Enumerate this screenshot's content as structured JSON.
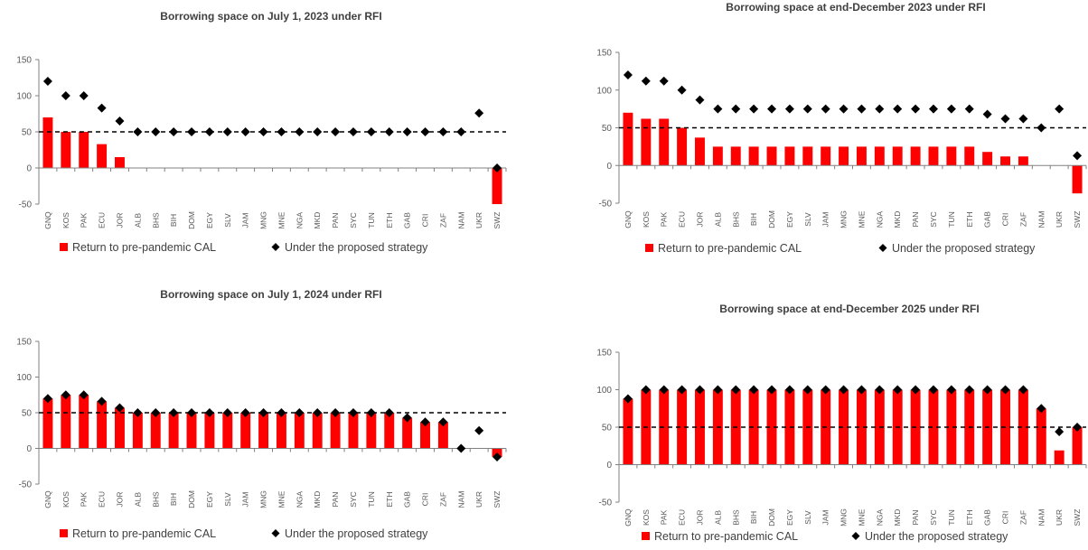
{
  "legend": {
    "bar_label": "Return to pre-pandemic CAL",
    "marker_label": "Under the proposed strategy"
  },
  "colors": {
    "bar": "#ff0000",
    "marker": "#000000",
    "reference_line": "#000000",
    "axis": "#808080"
  },
  "chart_data": [
    {
      "type": "bar",
      "title": "Borrowing space on July 1, 2023 under RFI",
      "categories": [
        "GNQ",
        "KOS",
        "PAK",
        "ECU",
        "JOR",
        "ALB",
        "BHS",
        "BIH",
        "DOM",
        "EGY",
        "SLV",
        "JAM",
        "MNG",
        "MNE",
        "NGA",
        "MKD",
        "PAN",
        "SYC",
        "TUN",
        "ETH",
        "GAB",
        "CRI",
        "ZAF",
        "NAM",
        "UKR",
        "SWZ"
      ],
      "series": [
        {
          "name": "Return to pre-pandemic CAL",
          "kind": "bar",
          "values": [
            70,
            50,
            50,
            33,
            15,
            0,
            0,
            0,
            0,
            0,
            0,
            0,
            0,
            0,
            0,
            0,
            0,
            0,
            0,
            0,
            0,
            0,
            0,
            0,
            0,
            -50
          ]
        },
        {
          "name": "Under the proposed strategy",
          "kind": "marker",
          "values": [
            120,
            100,
            100,
            83,
            65,
            50,
            50,
            50,
            50,
            50,
            50,
            50,
            50,
            50,
            50,
            50,
            50,
            50,
            50,
            50,
            50,
            50,
            50,
            50,
            76,
            0
          ]
        }
      ],
      "reference_line": 50,
      "ylim": [
        -50,
        150
      ],
      "yticks": [
        -50,
        0,
        50,
        100,
        150
      ],
      "legend_position": "bottom"
    },
    {
      "type": "bar",
      "title": "Borrowing space at end-December 2023 under RFI",
      "categories": [
        "GNQ",
        "KOS",
        "PAK",
        "ECU",
        "JOR",
        "ALB",
        "BHS",
        "BIH",
        "DOM",
        "EGY",
        "SLV",
        "JAM",
        "MNG",
        "MNE",
        "NGA",
        "MKD",
        "PAN",
        "SYC",
        "TUN",
        "ETH",
        "GAB",
        "CRI",
        "ZAF",
        "NAM",
        "UKR",
        "SWZ"
      ],
      "series": [
        {
          "name": "Return to pre-pandemic CAL",
          "kind": "bar",
          "values": [
            70,
            62,
            62,
            50,
            37,
            25,
            25,
            25,
            25,
            25,
            25,
            25,
            25,
            25,
            25,
            25,
            25,
            25,
            25,
            25,
            18,
            12,
            12,
            0,
            0,
            -37
          ]
        },
        {
          "name": "Under the proposed strategy",
          "kind": "marker",
          "values": [
            120,
            112,
            112,
            100,
            87,
            75,
            75,
            75,
            75,
            75,
            75,
            75,
            75,
            75,
            75,
            75,
            75,
            75,
            75,
            75,
            68,
            62,
            62,
            50,
            75,
            13
          ]
        }
      ],
      "reference_line": 50,
      "ylim": [
        -50,
        150
      ],
      "yticks": [
        -50,
        0,
        50,
        100,
        150
      ],
      "legend_position": "bottom"
    },
    {
      "type": "bar",
      "title": "Borrowing space on July 1, 2024 under RFI",
      "categories": [
        "GNQ",
        "KOS",
        "PAK",
        "ECU",
        "JOR",
        "ALB",
        "BHS",
        "BIH",
        "DOM",
        "EGY",
        "SLV",
        "JAM",
        "MNG",
        "MNE",
        "NGA",
        "MKD",
        "PAN",
        "SYC",
        "TUN",
        "ETH",
        "GAB",
        "CRI",
        "ZAF",
        "NAM",
        "UKR",
        "SWZ"
      ],
      "series": [
        {
          "name": "Return to pre-pandemic CAL",
          "kind": "bar",
          "values": [
            70,
            75,
            75,
            66,
            57,
            50,
            50,
            50,
            50,
            50,
            50,
            50,
            50,
            50,
            50,
            50,
            50,
            50,
            50,
            50,
            43,
            37,
            37,
            0,
            0,
            -12
          ]
        },
        {
          "name": "Under the proposed strategy",
          "kind": "marker",
          "values": [
            70,
            75,
            75,
            66,
            57,
            50,
            50,
            50,
            50,
            50,
            50,
            50,
            50,
            50,
            50,
            50,
            50,
            50,
            50,
            50,
            43,
            37,
            37,
            0,
            25,
            -12
          ]
        }
      ],
      "reference_line": 50,
      "ylim": [
        -50,
        150
      ],
      "yticks": [
        -50,
        0,
        50,
        100,
        150
      ],
      "legend_position": "bottom"
    },
    {
      "type": "bar",
      "title": "Borrowing space at end-December 2025 under RFI",
      "categories": [
        "GNQ",
        "KOS",
        "PAK",
        "ECU",
        "JOR",
        "ALB",
        "BHS",
        "BIH",
        "DOM",
        "EGY",
        "SLV",
        "JAM",
        "MNG",
        "MNE",
        "NGA",
        "MKD",
        "PAN",
        "SYC",
        "TUN",
        "ETH",
        "GAB",
        "CRI",
        "ZAF",
        "NAM",
        "UKR",
        "SWZ"
      ],
      "series": [
        {
          "name": "Return to pre-pandemic CAL",
          "kind": "bar",
          "values": [
            88,
            100,
            100,
            100,
            100,
            100,
            100,
            100,
            100,
            100,
            100,
            100,
            100,
            100,
            100,
            100,
            100,
            100,
            100,
            100,
            100,
            100,
            100,
            75,
            19,
            50
          ]
        },
        {
          "name": "Under the proposed strategy",
          "kind": "marker",
          "values": [
            88,
            100,
            100,
            100,
            100,
            100,
            100,
            100,
            100,
            100,
            100,
            100,
            100,
            100,
            100,
            100,
            100,
            100,
            100,
            100,
            100,
            100,
            100,
            75,
            44,
            50
          ]
        }
      ],
      "reference_line": 50,
      "ylim": [
        -50,
        150
      ],
      "yticks": [
        -50,
        0,
        50,
        100,
        150
      ],
      "legend_position": "bottom"
    }
  ]
}
